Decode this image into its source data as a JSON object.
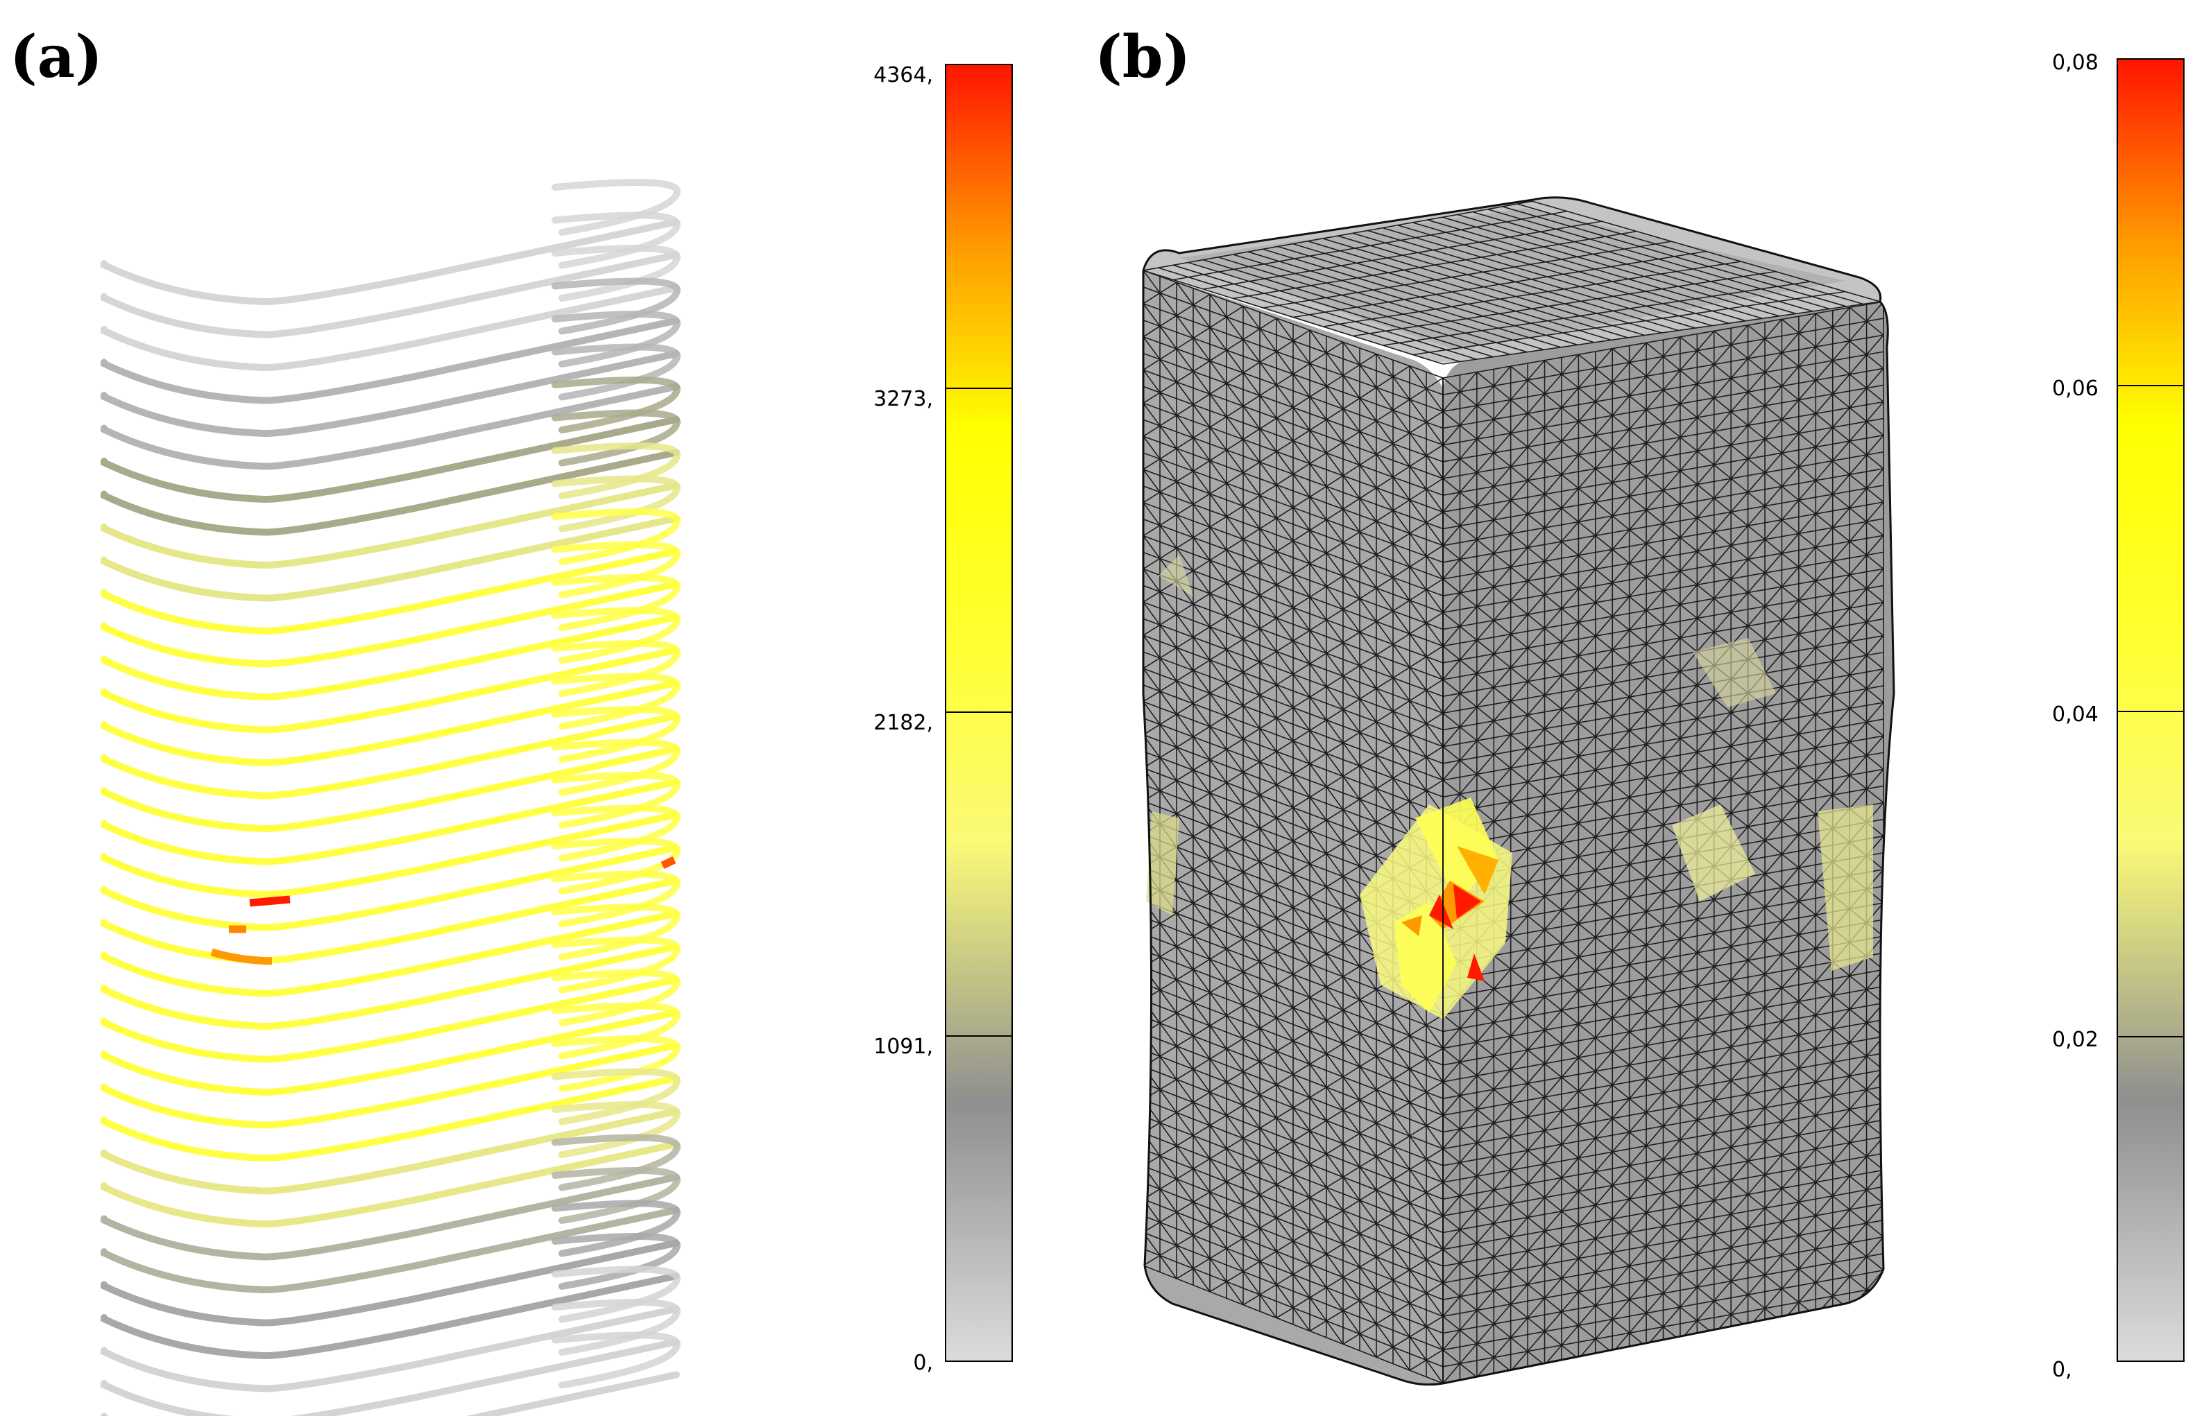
{
  "panels": [
    {
      "letter": "(a)",
      "colorbar": {
        "ticks": [
          "4364,",
          "3273,",
          "2182,",
          "1091,",
          "0,"
        ]
      }
    },
    {
      "letter": "(b)",
      "colorbar": {
        "ticks": [
          "0,08",
          "0,06",
          "0,04",
          "0,02",
          "0,"
        ]
      }
    }
  ],
  "colors": {
    "scale_stops": [
      "#d8d8d8",
      "#8c8c8c",
      "#b8b890",
      "#fafa6a",
      "#ffff00",
      "#ff9900",
      "#ff0000"
    ],
    "mesh_face": "#a6a6a6",
    "mesh_line": "#1c1c1c",
    "ring_gray": "#c6c6c6",
    "ring_yellow": "#ffff33",
    "hot_red": "#ff1a00",
    "hot_orange": "#ff9900"
  }
}
